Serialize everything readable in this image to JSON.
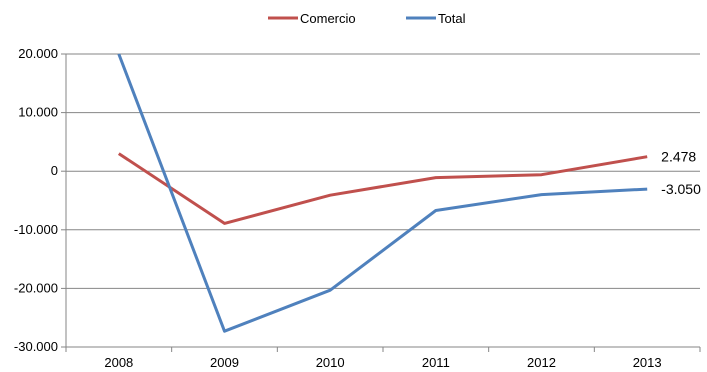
{
  "chart_data": {
    "type": "line",
    "categories": [
      "2008",
      "2009",
      "2010",
      "2011",
      "2012",
      "2013"
    ],
    "series": [
      {
        "name": "Comercio",
        "color": "#c0504d",
        "values": [
          3000,
          -8900,
          -4100,
          -1100,
          -600,
          2478
        ]
      },
      {
        "name": "Total",
        "color": "#4f81bd",
        "values": [
          20000,
          -27300,
          -20300,
          -6700,
          -4000,
          -3050
        ]
      }
    ],
    "ylim": [
      -30000,
      20000
    ],
    "yticks": [
      20000,
      10000,
      0,
      -10000,
      -20000,
      -30000
    ],
    "ytick_labels": [
      "20.000",
      "10.000",
      "0",
      "-10.000",
      "-20.000",
      "-30.000"
    ],
    "data_labels": [
      {
        "series": "Comercio",
        "category": "2013",
        "text": "2.478"
      },
      {
        "series": "Total",
        "category": "2013",
        "text": "-3.050"
      }
    ],
    "legend": "top-center",
    "grid": true
  }
}
